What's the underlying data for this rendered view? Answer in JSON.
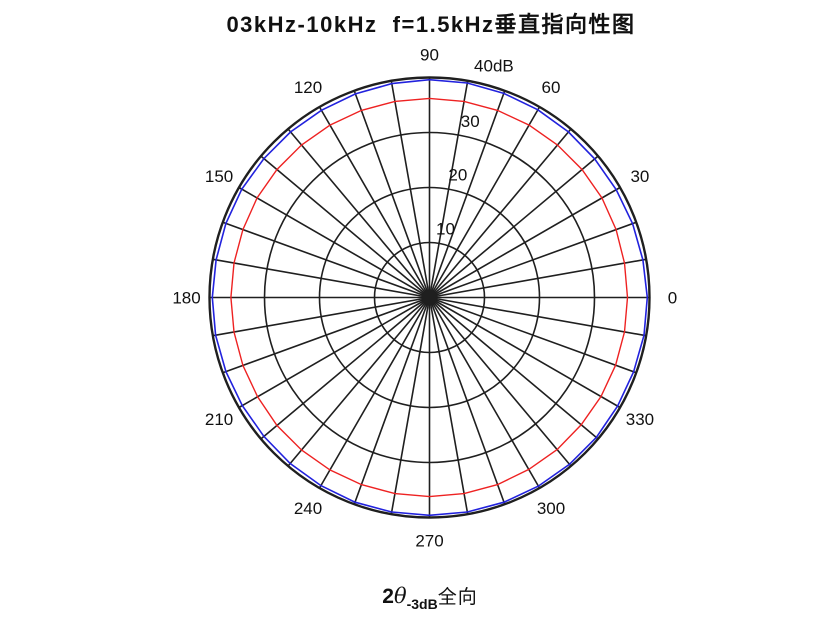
{
  "page": {
    "background": "#ffffff"
  },
  "chart_data": {
    "type": "line",
    "projection": "polar",
    "title": "03kHz-10kHz  f=1.5kHz垂直指向性图",
    "annotation": {
      "prefix": "2",
      "theta": "θ",
      "subscript": "-3dB",
      "suffix": "全向"
    },
    "angle_unit": "degrees",
    "angle_ticks": [
      0,
      30,
      60,
      90,
      120,
      150,
      180,
      210,
      240,
      270,
      300,
      330
    ],
    "spoke_step_deg": 10,
    "radial_ticks": [
      10,
      20,
      30,
      40
    ],
    "radial_tick_labels": [
      "10",
      "20",
      "30",
      "40dB"
    ],
    "rlim": [
      0,
      40
    ],
    "grid_on": true,
    "grid_color": "#1f1f1f",
    "legend": "none",
    "x": [
      0,
      10,
      20,
      30,
      40,
      50,
      60,
      70,
      80,
      90,
      100,
      110,
      120,
      130,
      140,
      150,
      160,
      170,
      180,
      190,
      200,
      210,
      220,
      230,
      240,
      250,
      260,
      270,
      280,
      290,
      300,
      310,
      320,
      330,
      340,
      350
    ],
    "series": [
      {
        "name": "red_curve",
        "color": "#ee2222",
        "values": [
          36.0,
          36.0,
          36.1,
          36.2,
          36.2,
          36.2,
          36.2,
          36.2,
          36.2,
          36.2,
          36.2,
          36.2,
          36.2,
          36.2,
          36.2,
          36.2,
          36.1,
          36.1,
          36.1,
          36.1,
          36.1,
          36.1,
          36.2,
          36.2,
          36.2,
          36.2,
          36.2,
          36.2,
          36.2,
          36.2,
          36.1,
          36.1,
          36.0,
          36.0,
          36.0,
          36.0
        ]
      },
      {
        "name": "blue_curve",
        "color": "#2222dd",
        "values": [
          39.6,
          39.4,
          39.3,
          39.2,
          39.2,
          39.3,
          39.4,
          39.5,
          39.6,
          39.6,
          39.5,
          39.4,
          39.3,
          39.3,
          39.3,
          39.4,
          39.4,
          39.4,
          39.5,
          39.5,
          39.4,
          39.3,
          39.3,
          39.4,
          39.5,
          39.6,
          39.6,
          39.6,
          39.6,
          39.6,
          39.6,
          39.6,
          39.6,
          39.5,
          39.5,
          39.6
        ]
      }
    ]
  }
}
